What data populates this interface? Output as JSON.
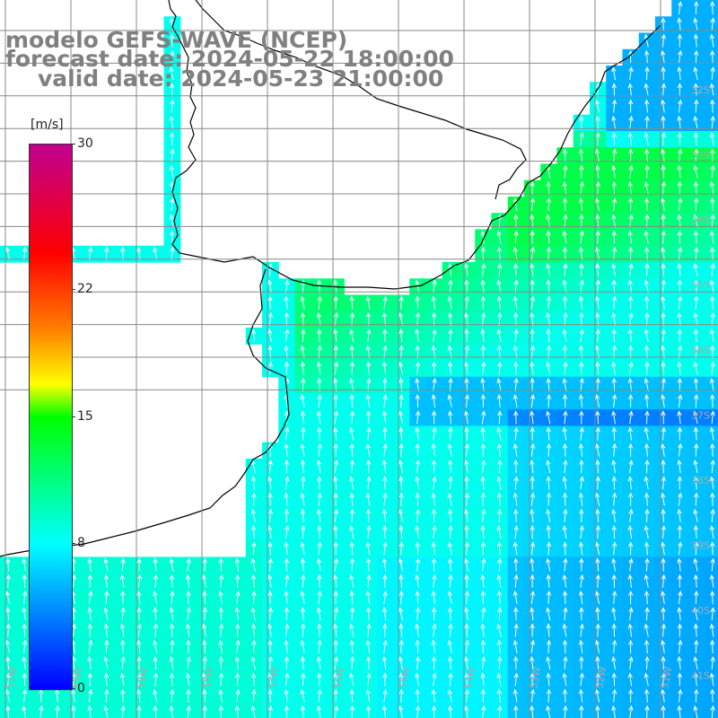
{
  "title": {
    "line1": "modelo GEFS-WAVE (NCEP)",
    "line2": "forecast date: 2024-05-22 18:00:00",
    "line3": "valid date: 2024-05-23 21:00:00"
  },
  "colorbar": {
    "unit": "[m/s]",
    "min": 0,
    "max": 30,
    "ticks": [
      {
        "label": "30",
        "value": 30
      },
      {
        "label": "22",
        "value": 22
      },
      {
        "label": "15",
        "value": 15
      },
      {
        "label": "8",
        "value": 8
      },
      {
        "label": "0",
        "value": 0
      }
    ],
    "colors": [
      "#0000ff",
      "#00ffff",
      "#00ff00",
      "#ffff00",
      "#ff8000",
      "#ff0000",
      "#c00090"
    ]
  },
  "map": {
    "lon_labels": [
      "61W",
      "60W",
      "59W",
      "58W",
      "57W",
      "56W",
      "55W",
      "54W",
      "53W",
      "52W",
      "51W"
    ],
    "lat_labels": [
      "32S",
      "33S",
      "34S",
      "35S",
      "36S",
      "37S",
      "38S",
      "39S",
      "40S",
      "41S"
    ],
    "wind": {
      "field": "surface wind speed with direction arrows",
      "predominant_direction": "from south toward north",
      "speed_range_ms": [
        4,
        13
      ]
    }
  }
}
